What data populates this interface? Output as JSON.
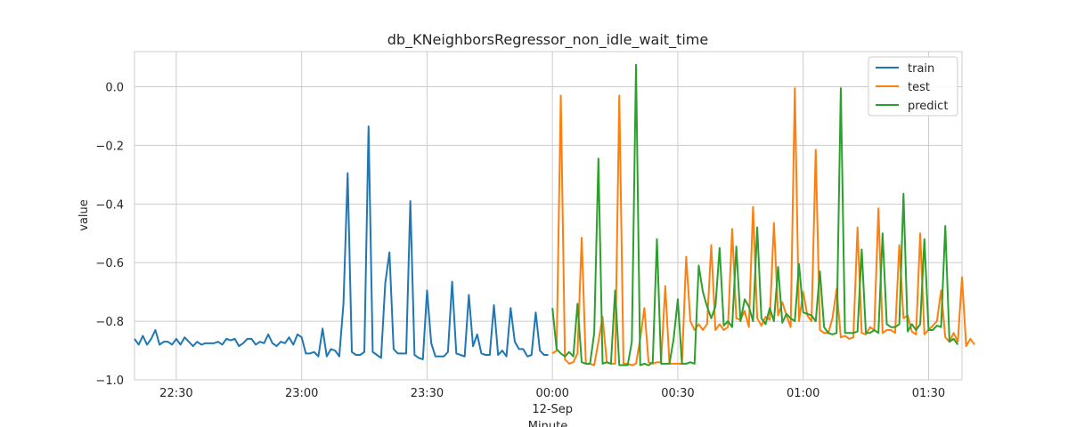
{
  "chart_data": {
    "type": "line",
    "title": "db_KNeighborsRegressor_non_idle_wait_time",
    "xlabel": "Minute",
    "ylabel": "value",
    "x_ticks": [
      {
        "minute": 30,
        "label": "22:30",
        "sublabel": ""
      },
      {
        "minute": 60,
        "label": "23:00",
        "sublabel": ""
      },
      {
        "minute": 90,
        "label": "23:30",
        "sublabel": ""
      },
      {
        "minute": 120,
        "label": "00:00",
        "sublabel": "12-Sep"
      },
      {
        "minute": 150,
        "label": "00:30",
        "sublabel": ""
      },
      {
        "minute": 180,
        "label": "01:00",
        "sublabel": ""
      },
      {
        "minute": 210,
        "label": "01:30",
        "sublabel": ""
      }
    ],
    "x_range_minutes": [
      20,
      218
    ],
    "x_origin_label": "22:00",
    "ylim": [
      -1.0,
      0.12
    ],
    "y_ticks": [
      -1.0,
      -0.8,
      -0.6,
      -0.4,
      -0.2,
      0.0
    ],
    "y_tick_labels": [
      "−1.0",
      "−0.8",
      "−0.6",
      "−0.4",
      "−0.2",
      "0.0"
    ],
    "grid": true,
    "legend_position": "top-right",
    "series": [
      {
        "name": "train",
        "color": "#1f77b4",
        "x_start_minute": 20,
        "values": [
          -0.86,
          -0.88,
          -0.85,
          -0.88,
          -0.86,
          -0.83,
          -0.88,
          -0.87,
          -0.87,
          -0.88,
          -0.86,
          -0.88,
          -0.855,
          -0.87,
          -0.885,
          -0.87,
          -0.88,
          -0.875,
          -0.875,
          -0.875,
          -0.87,
          -0.88,
          -0.86,
          -0.865,
          -0.86,
          -0.885,
          -0.875,
          -0.86,
          -0.86,
          -0.88,
          -0.87,
          -0.875,
          -0.845,
          -0.875,
          -0.885,
          -0.87,
          -0.875,
          -0.855,
          -0.88,
          -0.845,
          -0.855,
          -0.91,
          -0.91,
          -0.905,
          -0.92,
          -0.825,
          -0.92,
          -0.895,
          -0.9,
          -0.92,
          -0.74,
          -0.295,
          -0.905,
          -0.915,
          -0.915,
          -0.905,
          -0.135,
          -0.905,
          -0.915,
          -0.925,
          -0.67,
          -0.565,
          -0.895,
          -0.91,
          -0.91,
          -0.91,
          -0.39,
          -0.915,
          -0.925,
          -0.93,
          -0.695,
          -0.875,
          -0.92,
          -0.92,
          -0.92,
          -0.905,
          -0.665,
          -0.91,
          -0.915,
          -0.92,
          -0.71,
          -0.885,
          -0.845,
          -0.91,
          -0.915,
          -0.915,
          -0.745,
          -0.915,
          -0.9,
          -0.92,
          -0.755,
          -0.87,
          -0.895,
          -0.895,
          -0.92,
          -0.915,
          -0.77,
          -0.9,
          -0.915,
          -0.915
        ]
      },
      {
        "name": "test",
        "color": "#ff7f0e",
        "x_start_minute": 120,
        "values": [
          -0.91,
          -0.9,
          -0.03,
          -0.93,
          -0.945,
          -0.94,
          -0.91,
          -0.515,
          -0.945,
          -0.945,
          -0.95,
          -0.87,
          -0.785,
          -0.94,
          -0.945,
          -0.945,
          -0.03,
          -0.945,
          -0.945,
          -0.95,
          -0.945,
          -0.86,
          -0.755,
          -0.94,
          -0.945,
          -0.94,
          -0.94,
          -0.68,
          -0.945,
          -0.945,
          -0.945,
          -0.945,
          -0.58,
          -0.8,
          -0.83,
          -0.81,
          -0.83,
          -0.81,
          -0.54,
          -0.83,
          -0.81,
          -0.83,
          -0.82,
          -0.485,
          -0.79,
          -0.795,
          -0.765,
          -0.82,
          -0.41,
          -0.79,
          -0.815,
          -0.785,
          -0.795,
          -0.465,
          -0.78,
          -0.735,
          -0.78,
          -0.82,
          -0.005,
          -0.8,
          -0.7,
          -0.78,
          -0.8,
          -0.215,
          -0.83,
          -0.84,
          -0.84,
          -0.79,
          -0.69,
          -0.855,
          -0.85,
          -0.86,
          -0.855,
          -0.48,
          -0.84,
          -0.845,
          -0.82,
          -0.83,
          -0.415,
          -0.84,
          -0.83,
          -0.83,
          -0.84,
          -0.54,
          -0.79,
          -0.78,
          -0.835,
          -0.845,
          -0.5,
          -0.845,
          -0.83,
          -0.815,
          -0.8,
          -0.695,
          -0.855,
          -0.87,
          -0.84,
          -0.87,
          -0.65,
          -0.885,
          -0.86,
          -0.88
        ]
      },
      {
        "name": "predict",
        "color": "#2ca02c",
        "x_start_minute": 120,
        "values": [
          -0.755,
          -0.895,
          -0.91,
          -0.92,
          -0.905,
          -0.92,
          -0.74,
          -0.94,
          -0.945,
          -0.945,
          -0.84,
          -0.245,
          -0.945,
          -0.94,
          -0.945,
          -0.695,
          -0.95,
          -0.95,
          -0.95,
          -0.87,
          0.075,
          -0.95,
          -0.945,
          -0.95,
          -0.94,
          -0.52,
          -0.945,
          -0.945,
          -0.945,
          -0.86,
          -0.725,
          -0.945,
          -0.945,
          -0.94,
          -0.945,
          -0.61,
          -0.7,
          -0.75,
          -0.79,
          -0.75,
          -0.55,
          -0.815,
          -0.8,
          -0.82,
          -0.545,
          -0.8,
          -0.725,
          -0.75,
          -0.8,
          -0.48,
          -0.79,
          -0.81,
          -0.755,
          -0.8,
          -0.615,
          -0.805,
          -0.775,
          -0.79,
          -0.8,
          -0.605,
          -0.77,
          -0.775,
          -0.78,
          -0.8,
          -0.63,
          -0.82,
          -0.84,
          -0.845,
          -0.84,
          -0.005,
          -0.84,
          -0.84,
          -0.84,
          -0.835,
          -0.555,
          -0.84,
          -0.84,
          -0.83,
          -0.84,
          -0.5,
          -0.81,
          -0.82,
          -0.82,
          -0.81,
          -0.365,
          -0.835,
          -0.81,
          -0.83,
          -0.81,
          -0.52,
          -0.83,
          -0.83,
          -0.815,
          -0.82,
          -0.475,
          -0.87,
          -0.86,
          -0.88
        ]
      }
    ]
  }
}
